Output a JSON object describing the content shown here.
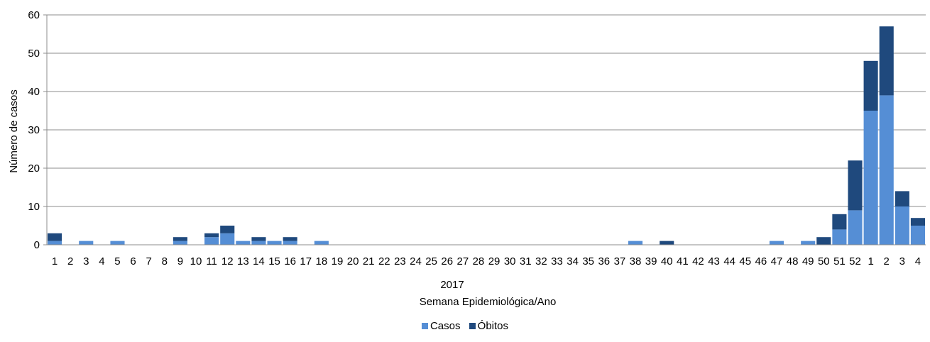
{
  "chart_data": {
    "type": "bar",
    "stacked": true,
    "ylabel": "Número de casos",
    "xlabel": "Semana Epidemiológica/Ano",
    "year_label": "2017",
    "ylim": [
      0,
      60
    ],
    "yticks": [
      0,
      10,
      20,
      30,
      40,
      50,
      60
    ],
    "grid": true,
    "legend_position": "bottom",
    "categories": [
      "1",
      "2",
      "3",
      "4",
      "5",
      "6",
      "7",
      "8",
      "9",
      "10",
      "11",
      "12",
      "13",
      "14",
      "15",
      "16",
      "17",
      "18",
      "19",
      "20",
      "21",
      "22",
      "23",
      "24",
      "25",
      "26",
      "27",
      "28",
      "29",
      "30",
      "31",
      "32",
      "33",
      "34",
      "35",
      "36",
      "37",
      "38",
      "39",
      "40",
      "41",
      "42",
      "43",
      "44",
      "45",
      "46",
      "47",
      "48",
      "49",
      "50",
      "51",
      "52",
      "1",
      "2",
      "3",
      "4"
    ],
    "series": [
      {
        "name": "Casos",
        "color": "#558ED5",
        "values": [
          1,
          0,
          1,
          0,
          1,
          0,
          0,
          0,
          1,
          0,
          2,
          3,
          1,
          1,
          1,
          1,
          0,
          1,
          0,
          0,
          0,
          0,
          0,
          0,
          0,
          0,
          0,
          0,
          0,
          0,
          0,
          0,
          0,
          0,
          0,
          0,
          0,
          1,
          0,
          0,
          0,
          0,
          0,
          0,
          0,
          0,
          1,
          0,
          1,
          0,
          4,
          9,
          35,
          39,
          10,
          5
        ]
      },
      {
        "name": "Óbitos",
        "color": "#1F497D",
        "values": [
          2,
          0,
          0,
          0,
          0,
          0,
          0,
          0,
          1,
          0,
          1,
          2,
          0,
          1,
          0,
          1,
          0,
          0,
          0,
          0,
          0,
          0,
          0,
          0,
          0,
          0,
          0,
          0,
          0,
          0,
          0,
          0,
          0,
          0,
          0,
          0,
          0,
          0,
          0,
          1,
          0,
          0,
          0,
          0,
          0,
          0,
          0,
          0,
          0,
          2,
          4,
          13,
          13,
          18,
          4,
          2
        ]
      }
    ]
  }
}
